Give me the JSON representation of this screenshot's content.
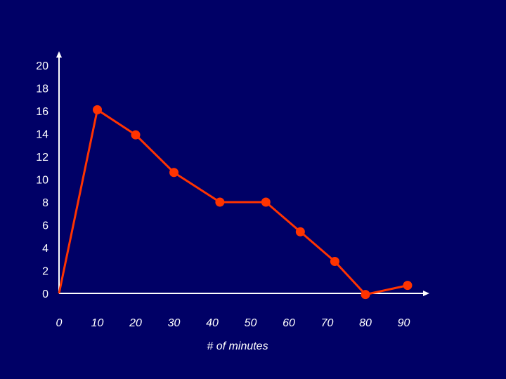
{
  "chart_data": {
    "type": "line",
    "title": "",
    "xlabel": "# of minutes",
    "ylabel": "",
    "x_ticks": [
      "0",
      "10",
      "20",
      "30",
      "40",
      "50",
      "60",
      "70",
      "80",
      "90"
    ],
    "y_ticks": [
      "0",
      "2",
      "4",
      "6",
      "8",
      "10",
      "12",
      "14",
      "16",
      "18",
      "20"
    ],
    "xlim": [
      0,
      95
    ],
    "ylim": [
      0,
      20
    ],
    "grid": false,
    "series": [
      {
        "x": [
          0,
          10,
          20,
          30,
          42,
          54,
          63,
          72,
          80,
          91
        ],
        "y": [
          0,
          16.1,
          13.9,
          10.6,
          8.0,
          8.0,
          5.4,
          2.8,
          -0.1,
          0.7
        ]
      }
    ],
    "colors": {
      "background": "#000066",
      "line": "#ff3300",
      "axis": "#ffffff",
      "text": "#ffffff"
    }
  }
}
